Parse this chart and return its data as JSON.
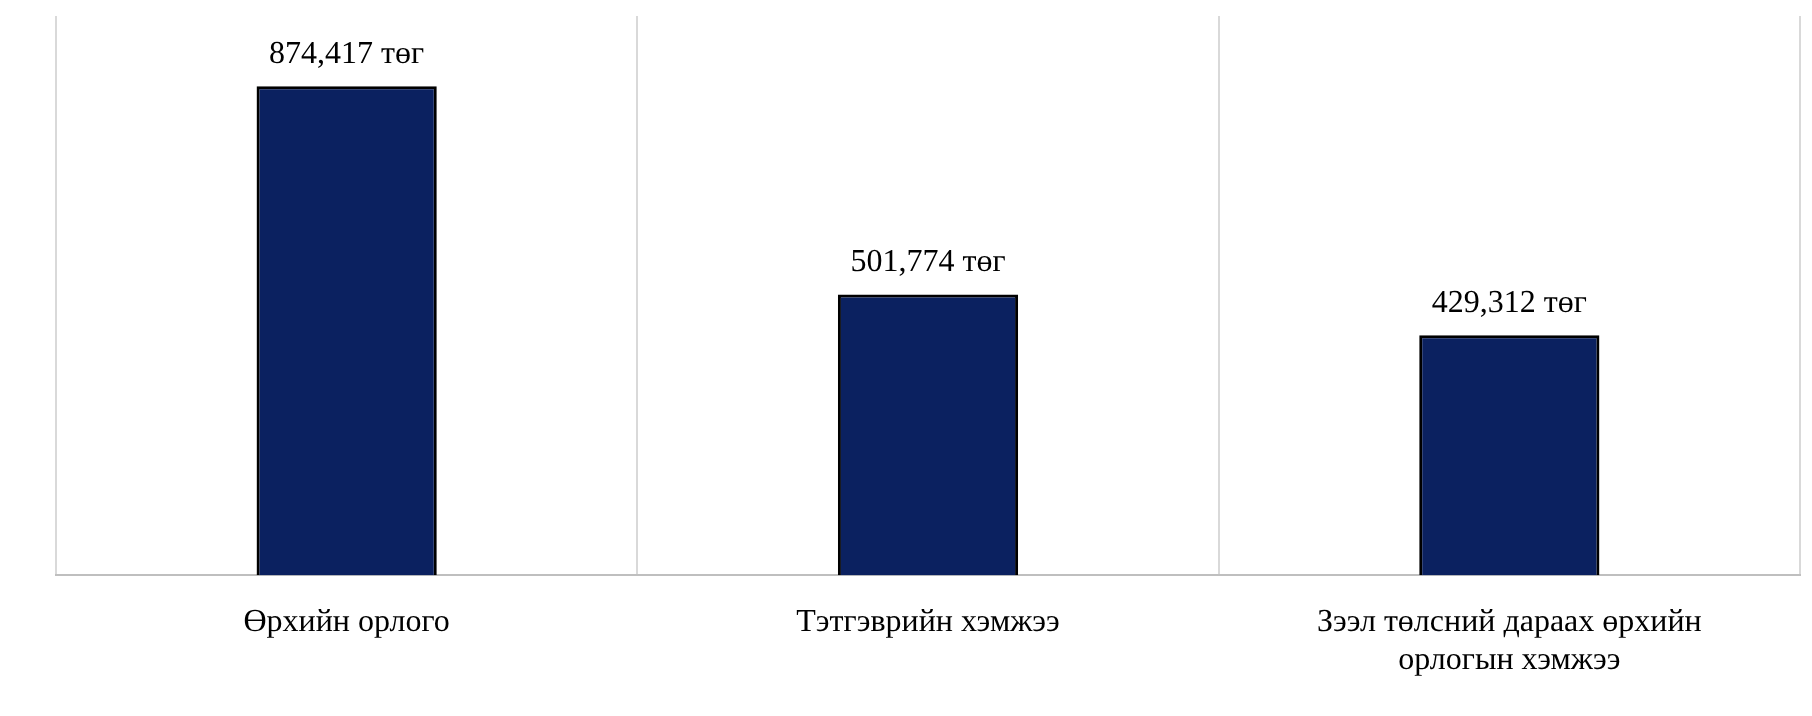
{
  "chart_data": {
    "type": "bar",
    "categories": [
      "Өрхийн орлого",
      "Тэтгэврийн хэмжээ",
      "Зээл төлсний дараах өрхийн орлогын хэмжээ"
    ],
    "values": [
      874417,
      501774,
      429312
    ],
    "value_labels": [
      "874,417 төг",
      "501,774 төг",
      "429,312 төг"
    ],
    "color": "#0b2160",
    "ylim": [
      0,
      1000000
    ],
    "grid": "x",
    "legend": false
  }
}
